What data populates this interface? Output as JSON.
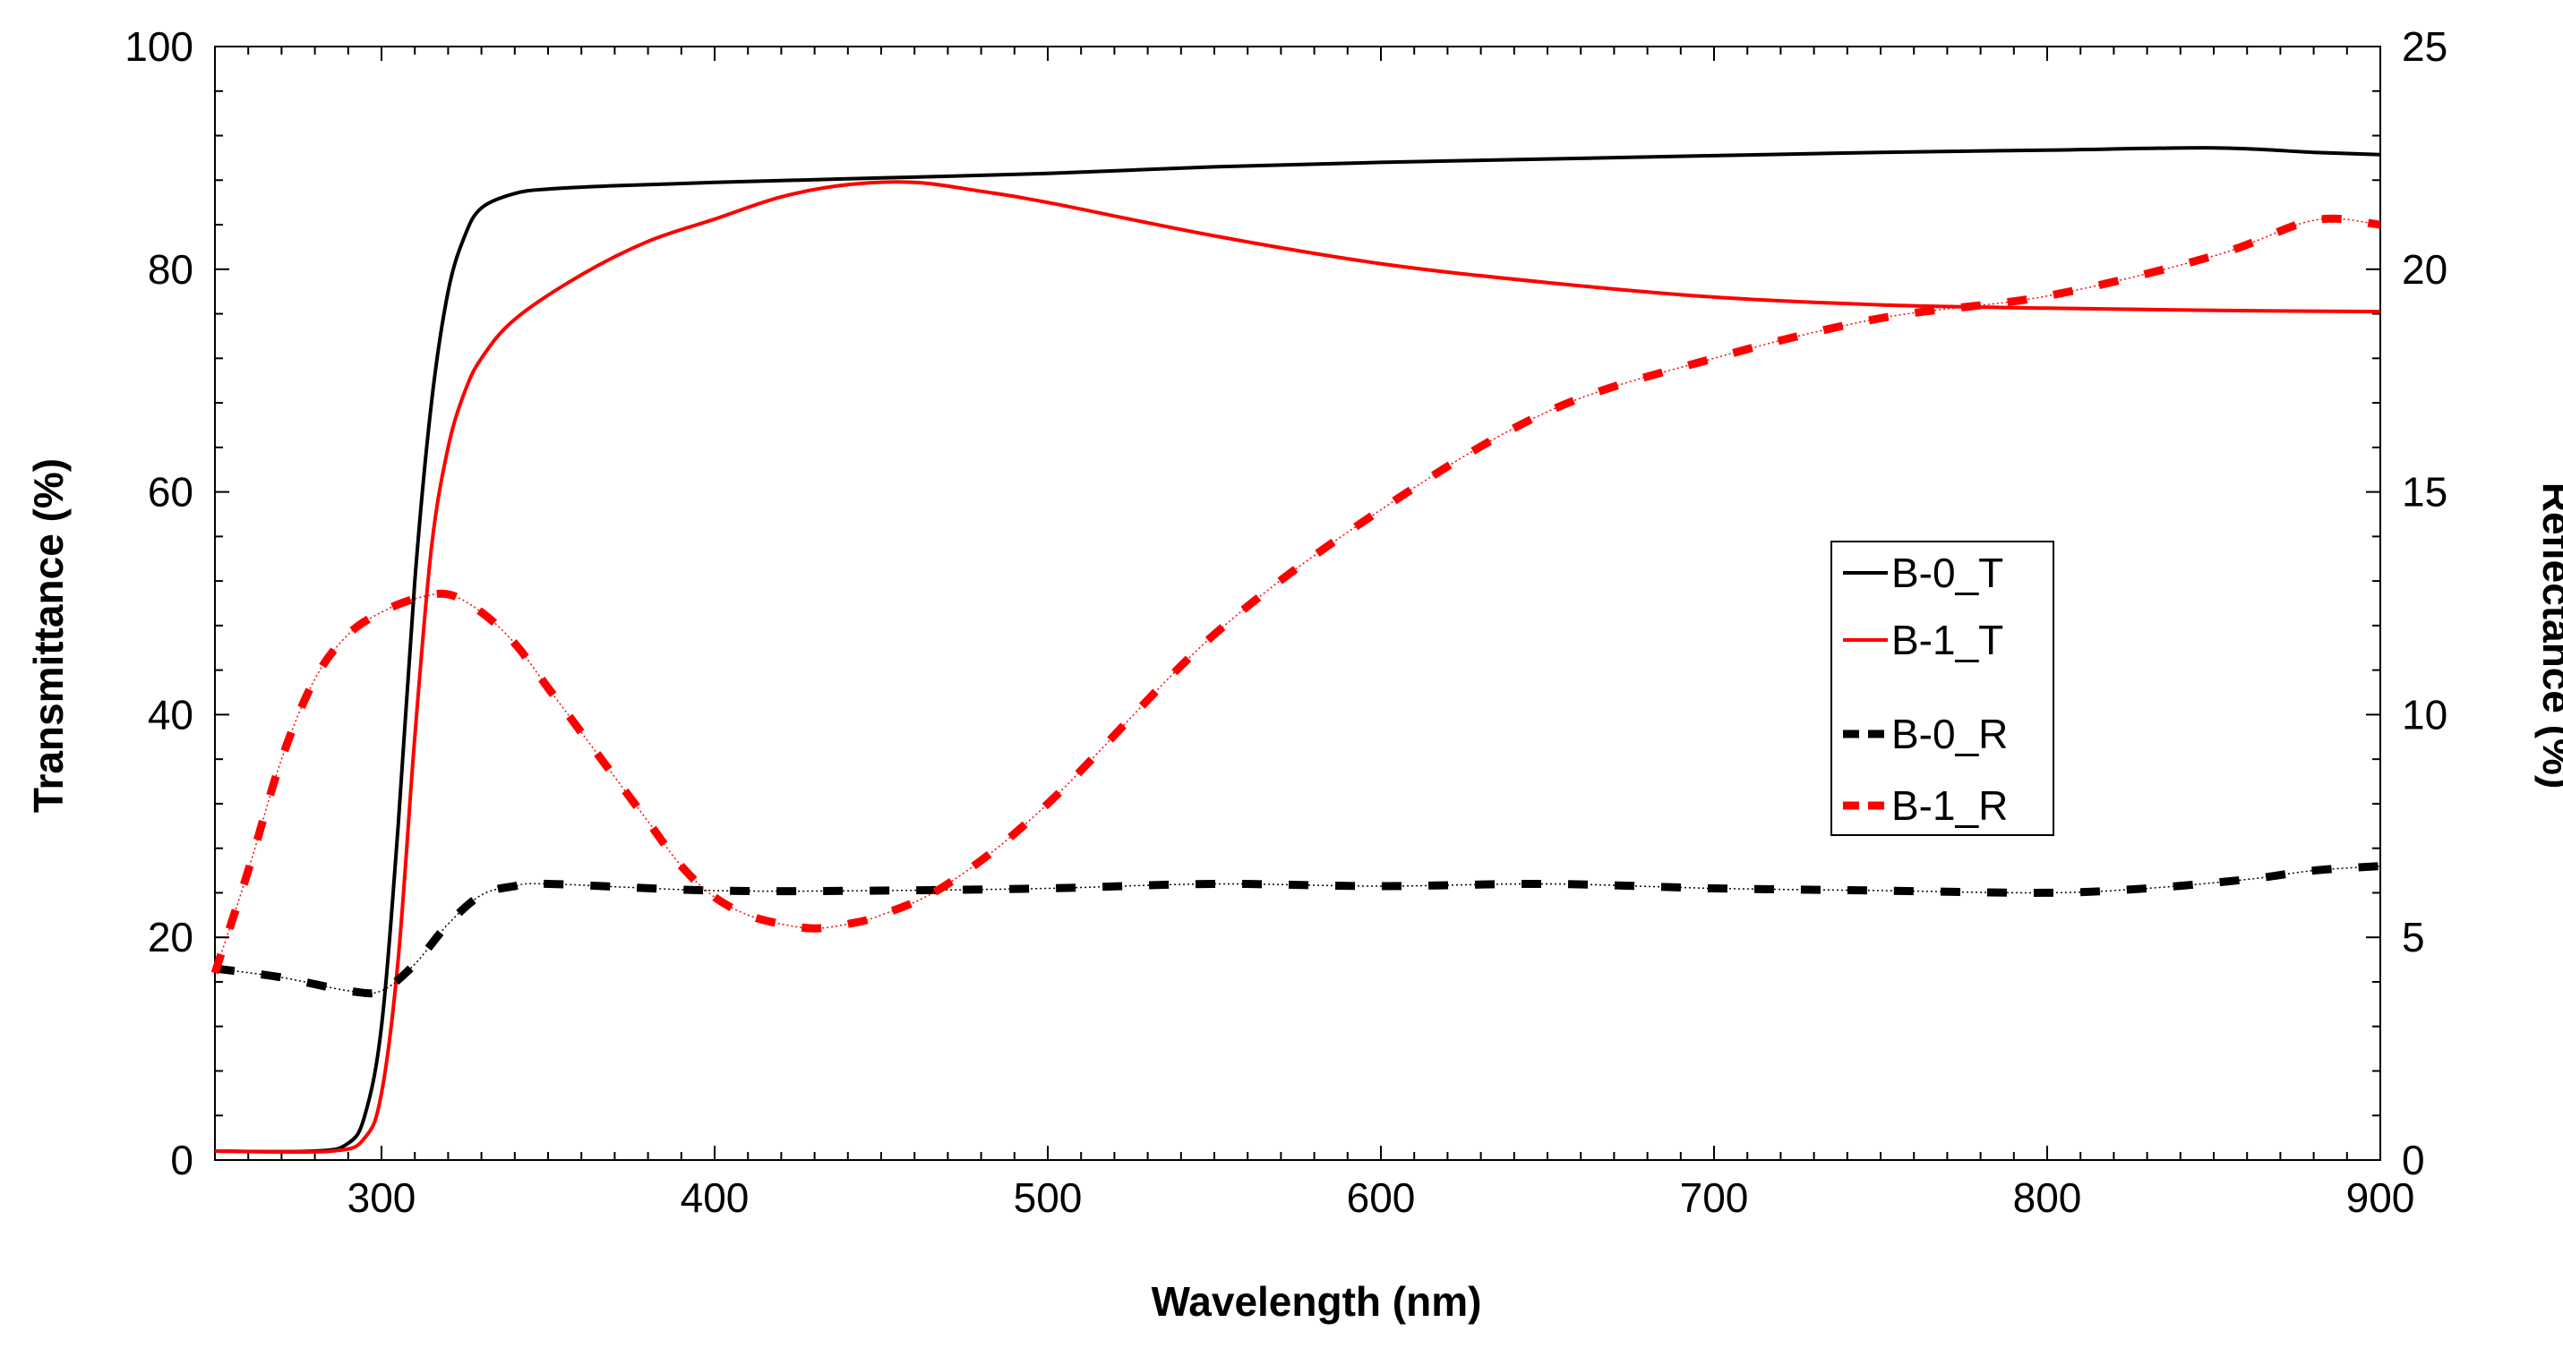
{
  "chart_data": {
    "type": "line",
    "title": "",
    "xlabel": "Wavelength (nm)",
    "ylabel_left": "Transmittance (%)",
    "ylabel_right": "Reflectance (%)",
    "xlim": [
      250,
      900
    ],
    "ylim_left": [
      0,
      100
    ],
    "ylim_right": [
      0,
      25
    ],
    "x_ticks": [
      300,
      400,
      500,
      600,
      700,
      800,
      900
    ],
    "y_left_ticks": [
      0,
      20,
      40,
      60,
      80,
      100
    ],
    "y_right_ticks": [
      0,
      5,
      10,
      15,
      20,
      25
    ],
    "grid": false,
    "legend_position": "center-right",
    "series": [
      {
        "name": "B-0_T",
        "axis": "left",
        "color": "#000000",
        "style": "solid",
        "x": [
          250,
          280,
          290,
          295,
          300,
          305,
          310,
          315,
          320,
          325,
          330,
          340,
          350,
          370,
          400,
          450,
          500,
          550,
          600,
          650,
          700,
          750,
          800,
          850,
          880,
          900
        ],
        "y": [
          0.8,
          0.8,
          1.5,
          4,
          12,
          30,
          52,
          68,
          78,
          83,
          85.5,
          86.8,
          87.2,
          87.5,
          87.8,
          88.2,
          88.6,
          89.2,
          89.6,
          89.9,
          90.2,
          90.5,
          90.7,
          90.9,
          90.5,
          90.3
        ]
      },
      {
        "name": "B-1_T",
        "axis": "left",
        "color": "#ff0000",
        "style": "solid",
        "x": [
          250,
          285,
          295,
          300,
          305,
          310,
          315,
          320,
          325,
          330,
          340,
          360,
          380,
          400,
          420,
          440,
          460,
          480,
          500,
          550,
          600,
          650,
          700,
          750,
          800,
          850,
          900
        ],
        "y": [
          0.8,
          0.8,
          2,
          6,
          18,
          38,
          55,
          64,
          69,
          72,
          75.5,
          79.5,
          82.5,
          84.5,
          86.5,
          87.6,
          87.8,
          87.0,
          86.0,
          83.0,
          80.5,
          78.8,
          77.5,
          76.8,
          76.5,
          76.3,
          76.2
        ]
      },
      {
        "name": "B-0_R",
        "axis": "right",
        "color": "#000000",
        "style": "dashed",
        "x": [
          250,
          270,
          290,
          300,
          310,
          320,
          330,
          340,
          350,
          400,
          450,
          500,
          550,
          600,
          650,
          700,
          750,
          800,
          830,
          860,
          880,
          900
        ],
        "y": [
          4.3,
          4.1,
          3.8,
          3.8,
          4.4,
          5.3,
          5.95,
          6.15,
          6.2,
          6.05,
          6.05,
          6.1,
          6.2,
          6.15,
          6.2,
          6.1,
          6.05,
          6.0,
          6.1,
          6.3,
          6.5,
          6.6
        ]
      },
      {
        "name": "B-1_R",
        "axis": "right",
        "color": "#ff0000",
        "style": "dashed",
        "x": [
          250,
          260,
          270,
          280,
          290,
          300,
          310,
          320,
          330,
          340,
          350,
          360,
          370,
          380,
          390,
          400,
          410,
          420,
          430,
          440,
          450,
          470,
          500,
          550,
          600,
          650,
          700,
          750,
          800,
          850,
          880,
          900
        ],
        "y": [
          4.2,
          6.5,
          9.0,
          10.8,
          11.8,
          12.3,
          12.6,
          12.7,
          12.3,
          11.6,
          10.6,
          9.6,
          8.6,
          7.6,
          6.6,
          5.9,
          5.5,
          5.3,
          5.2,
          5.3,
          5.5,
          6.2,
          8.0,
          11.8,
          14.6,
          16.8,
          18.0,
          18.9,
          19.4,
          20.3,
          21.1,
          21.0
        ]
      }
    ]
  }
}
